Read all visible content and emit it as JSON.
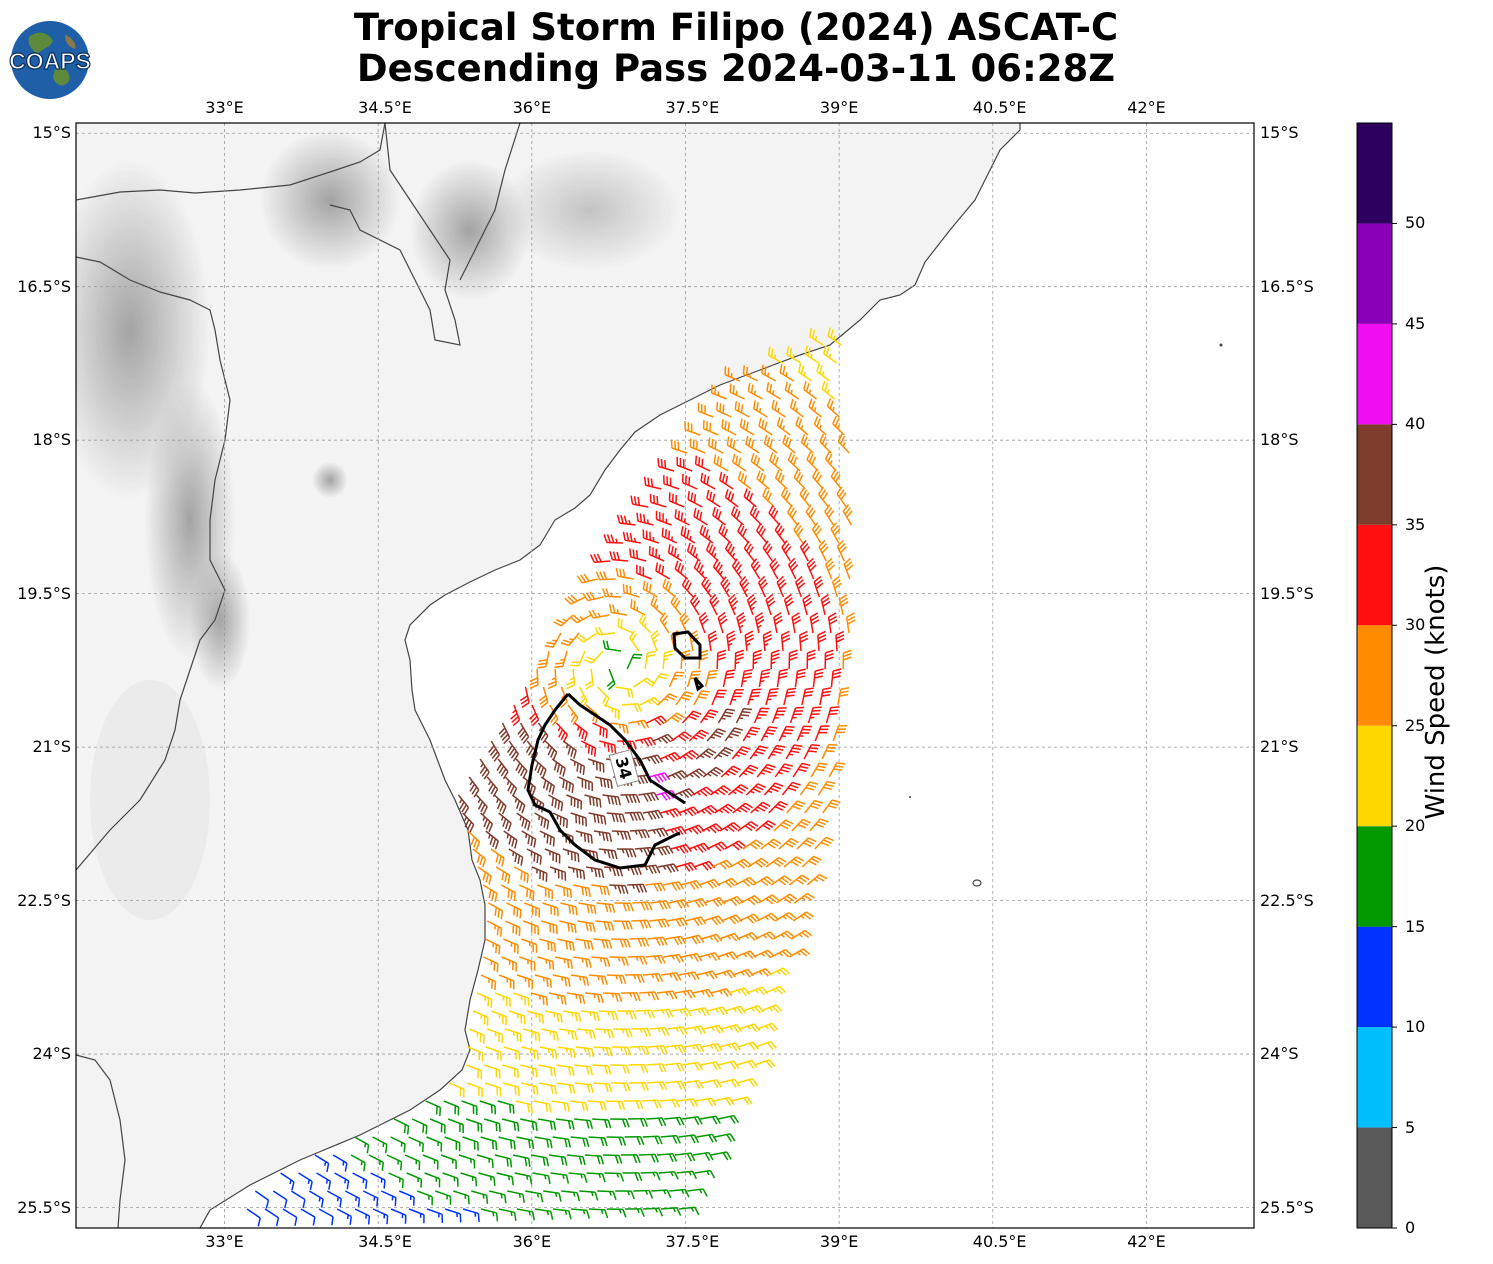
{
  "title_line1": "Tropical Storm Filipo (2024) ASCAT-C",
  "title_line2": "Descending Pass 2024-03-11 06:28Z",
  "logo_text": "COAPS",
  "lon_ticks": [
    "33°E",
    "34.5°E",
    "36°E",
    "37.5°E",
    "39°E",
    "40.5°E",
    "42°E"
  ],
  "lat_ticks": [
    "15°S",
    "16.5°S",
    "18°S",
    "19.5°S",
    "21°S",
    "22.5°S",
    "24°S",
    "25.5°S"
  ],
  "contour_label": "34",
  "colorbar": {
    "label": "Wind Speed (knots)",
    "ticks": [
      "0",
      "5",
      "10",
      "15",
      "20",
      "25",
      "30",
      "35",
      "40",
      "45",
      "50"
    ],
    "bins": [
      {
        "min": 0,
        "max": 5,
        "color": "#595959"
      },
      {
        "min": 5,
        "max": 10,
        "color": "#00bfff"
      },
      {
        "min": 10,
        "max": 15,
        "color": "#0033ff"
      },
      {
        "min": 15,
        "max": 20,
        "color": "#009900"
      },
      {
        "min": 20,
        "max": 25,
        "color": "#ffd700"
      },
      {
        "min": 25,
        "max": 30,
        "color": "#ff8c00"
      },
      {
        "min": 30,
        "max": 35,
        "color": "#ff0f0f"
      },
      {
        "min": 35,
        "max": 40,
        "color": "#7f3b2b"
      },
      {
        "min": 40,
        "max": 45,
        "color": "#f20ef2"
      },
      {
        "min": 45,
        "max": 50,
        "color": "#8a00b8"
      },
      {
        "min": 50,
        "max": 55,
        "color": "#2d0060"
      }
    ]
  },
  "map": {
    "lon_range": [
      31.55,
      43.05
    ],
    "lat_range": [
      -25.7,
      -14.9
    ],
    "storm_center": {
      "lon": 36.85,
      "lat": -20.2
    }
  }
}
